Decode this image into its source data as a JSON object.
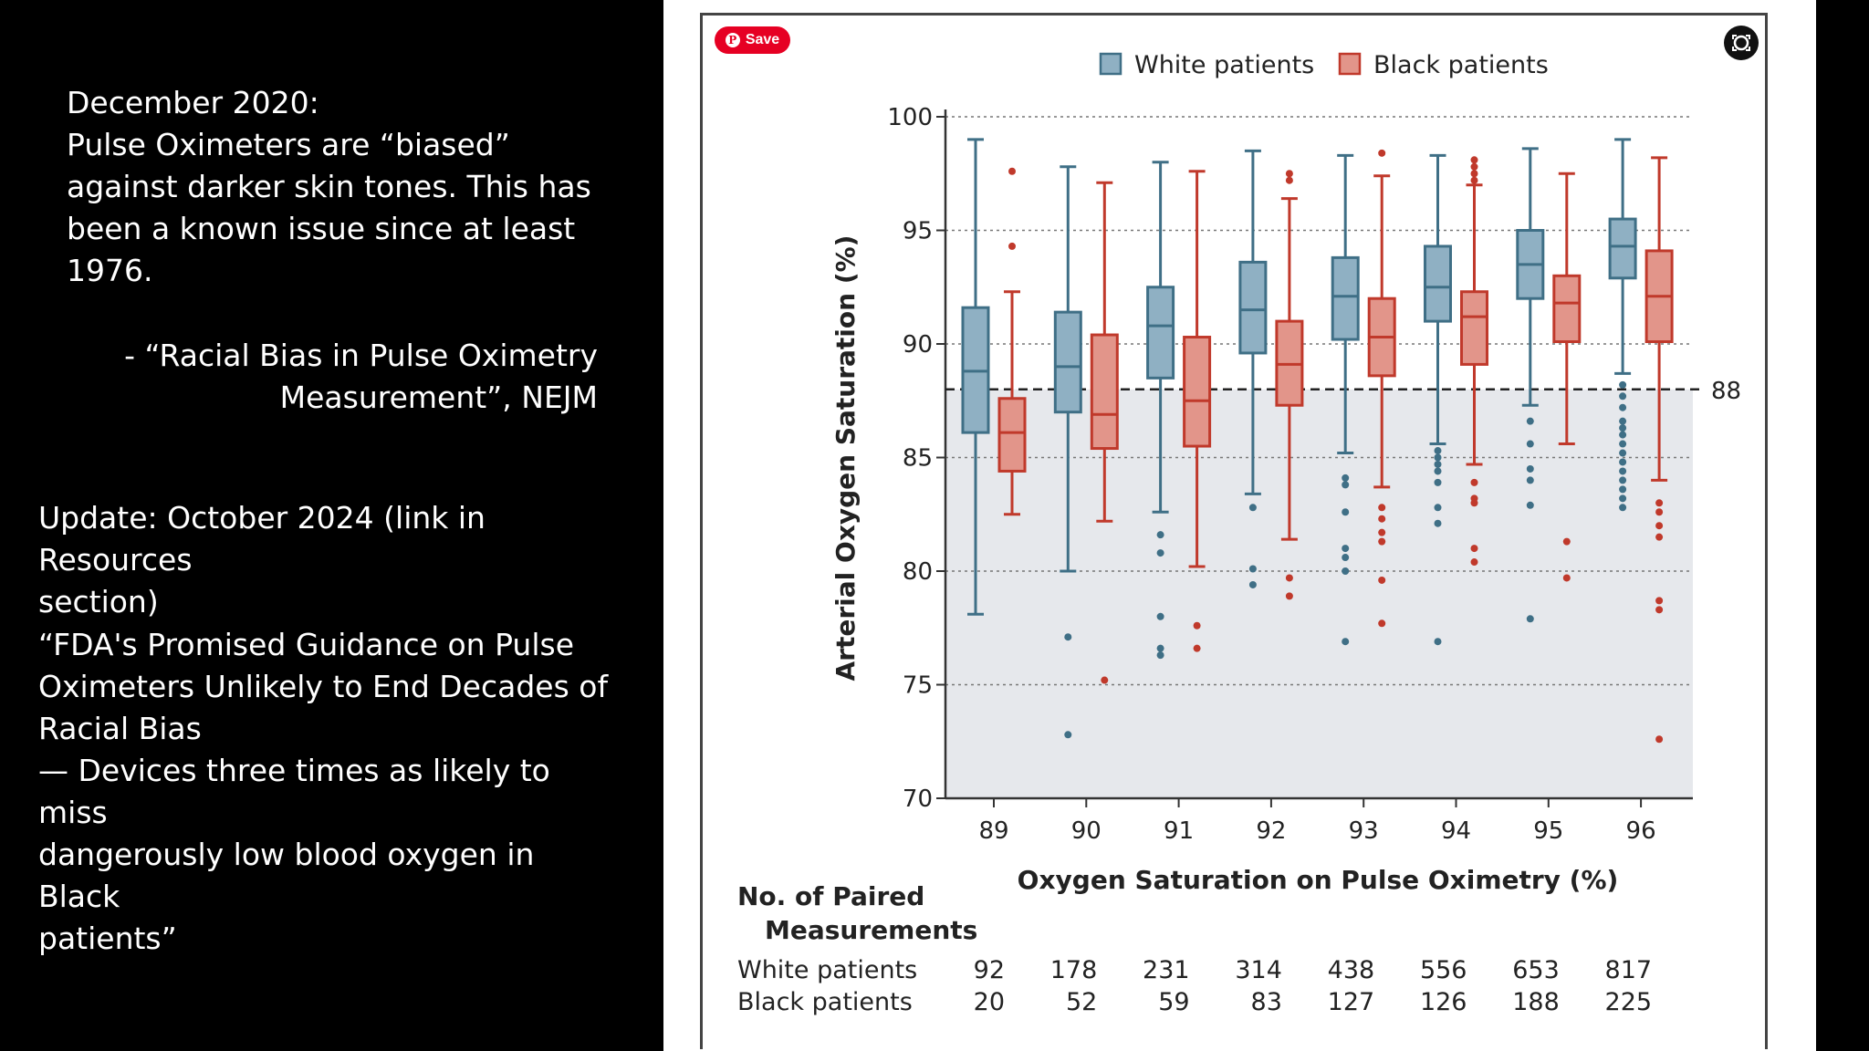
{
  "left_panel": {
    "quote_lines": [
      "December 2020:",
      "Pulse Oximeters are “biased”",
      "against darker skin tones. This has",
      "been a known issue since at least",
      "1976."
    ],
    "attribution_lines": [
      "- “Racial Bias in Pulse Oximetry",
      "Measurement”, NEJM"
    ],
    "update_lines": [
      "Update: October 2024 (link in Resources",
      "section)"
    ],
    "fda_lines": [
      "“FDA's Promised Guidance on Pulse",
      "Oximeters Unlikely to End Decades of",
      "Racial Bias",
      "— Devices three times as likely to miss",
      "dangerously low blood oxygen in Black",
      "patients”"
    ]
  },
  "overlay": {
    "save_label": "Save",
    "save_icon": "pinterest-icon",
    "lens_icon": "visual-search-icon"
  },
  "colors": {
    "white_series": "#3f6f86",
    "white_fill": "#8fb0c3",
    "black_series": "#c0392b",
    "black_fill": "#e2958a",
    "shaded_region": "#e6e8ec"
  },
  "chart_data": {
    "type": "box",
    "xlabel": "Oxygen Saturation on Pulse Oximetry (%)",
    "ylabel": "Arterial Oxygen Saturation (%)",
    "ylim": [
      70,
      100
    ],
    "yticks": [
      70,
      75,
      80,
      85,
      90,
      95,
      100
    ],
    "grid": "dotted horizontal",
    "legend_position": "top",
    "threshold": {
      "value": 88,
      "label": "88"
    },
    "categories": [
      "89",
      "90",
      "91",
      "92",
      "93",
      "94",
      "95",
      "96"
    ],
    "series": [
      {
        "name": "White patients",
        "boxes": [
          {
            "whisker_low": 78.1,
            "q1": 86.1,
            "median": 88.8,
            "q3": 91.6,
            "whisker_high": 99.0,
            "outliers": []
          },
          {
            "whisker_low": 80.0,
            "q1": 87.0,
            "median": 89.0,
            "q3": 91.4,
            "whisker_high": 97.8,
            "outliers": [
              77.1,
              72.8
            ]
          },
          {
            "whisker_low": 82.6,
            "q1": 88.5,
            "median": 90.8,
            "q3": 92.5,
            "whisker_high": 98.0,
            "outliers": [
              81.6,
              80.8,
              78.0,
              76.6,
              76.3
            ]
          },
          {
            "whisker_low": 83.4,
            "q1": 89.6,
            "median": 91.5,
            "q3": 93.6,
            "whisker_high": 98.5,
            "outliers": [
              82.8,
              80.1,
              79.4
            ]
          },
          {
            "whisker_low": 85.2,
            "q1": 90.2,
            "median": 92.1,
            "q3": 93.8,
            "whisker_high": 98.3,
            "outliers": [
              84.1,
              83.8,
              82.6,
              81.0,
              80.6,
              80.0,
              76.9
            ]
          },
          {
            "whisker_low": 85.6,
            "q1": 91.0,
            "median": 92.5,
            "q3": 94.3,
            "whisker_high": 98.3,
            "outliers": [
              85.3,
              85.0,
              84.7,
              84.4,
              83.9,
              82.8,
              82.1,
              76.9
            ]
          },
          {
            "whisker_low": 87.3,
            "q1": 92.0,
            "median": 93.5,
            "q3": 95.0,
            "whisker_high": 98.6,
            "outliers": [
              86.6,
              85.6,
              84.5,
              84.0,
              82.9,
              77.9
            ]
          },
          {
            "whisker_low": 88.7,
            "q1": 92.9,
            "median": 94.3,
            "q3": 95.5,
            "whisker_high": 99.0,
            "outliers": [
              88.2,
              87.7,
              87.2,
              86.6,
              86.3,
              86.0,
              85.6,
              85.2,
              84.8,
              84.4,
              84.0,
              83.6,
              83.2,
              82.8
            ]
          }
        ]
      },
      {
        "name": "Black patients",
        "boxes": [
          {
            "whisker_low": 82.5,
            "q1": 84.4,
            "median": 86.1,
            "q3": 87.6,
            "whisker_high": 92.3,
            "outliers": [
              97.6,
              94.3
            ]
          },
          {
            "whisker_low": 82.2,
            "q1": 85.4,
            "median": 86.9,
            "q3": 90.4,
            "whisker_high": 97.1,
            "outliers": [
              75.2
            ]
          },
          {
            "whisker_low": 80.2,
            "q1": 85.5,
            "median": 87.5,
            "q3": 90.3,
            "whisker_high": 97.6,
            "outliers": [
              77.6,
              76.6
            ]
          },
          {
            "whisker_low": 81.4,
            "q1": 87.3,
            "median": 89.1,
            "q3": 91.0,
            "whisker_high": 96.4,
            "outliers": [
              97.5,
              97.2,
              79.7,
              78.9
            ]
          },
          {
            "whisker_low": 83.7,
            "q1": 88.6,
            "median": 90.3,
            "q3": 92.0,
            "whisker_high": 97.4,
            "outliers": [
              98.4,
              82.8,
              82.3,
              81.7,
              81.3,
              79.6,
              77.7
            ]
          },
          {
            "whisker_low": 84.7,
            "q1": 89.1,
            "median": 91.2,
            "q3": 92.3,
            "whisker_high": 97.0,
            "outliers": [
              98.1,
              97.8,
              97.5,
              97.2,
              83.9,
              83.2,
              83.0,
              81.0,
              80.4
            ]
          },
          {
            "whisker_low": 85.6,
            "q1": 90.1,
            "median": 91.8,
            "q3": 93.0,
            "whisker_high": 97.5,
            "outliers": [
              81.3,
              79.7
            ]
          },
          {
            "whisker_low": 84.0,
            "q1": 90.1,
            "median": 92.1,
            "q3": 94.1,
            "whisker_high": 98.2,
            "outliers": [
              83.0,
              82.6,
              82.0,
              81.5,
              78.7,
              78.3,
              72.6
            ]
          }
        ]
      }
    ],
    "paired_measurements": {
      "title_lines": [
        "No. of Paired",
        "Measurements"
      ],
      "rows": [
        {
          "label": "White patients",
          "values": [
            "92",
            "178",
            "231",
            "314",
            "438",
            "556",
            "653",
            "817"
          ]
        },
        {
          "label": "Black patients",
          "values": [
            "20",
            "52",
            "59",
            "83",
            "127",
            "126",
            "188",
            "225"
          ]
        }
      ]
    }
  }
}
